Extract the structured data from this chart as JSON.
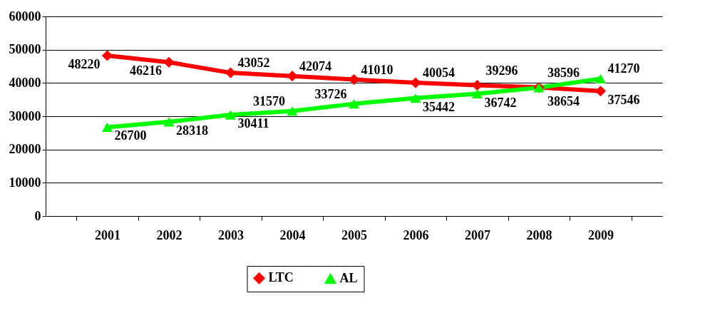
{
  "chart_data": {
    "type": "line",
    "categories": [
      "2001",
      "2002",
      "2003",
      "2004",
      "2005",
      "2006",
      "2007",
      "2008",
      "2009"
    ],
    "series": [
      {
        "name": "LTC",
        "color": "#ff0000",
        "marker": "diamond",
        "values": [
          48220,
          46216,
          43052,
          42074,
          41010,
          40054,
          39296,
          38654,
          37546
        ]
      },
      {
        "name": "AL",
        "color": "#00ff00",
        "marker": "triangle",
        "values": [
          26700,
          28318,
          30411,
          31570,
          33726,
          35442,
          36742,
          38596,
          41270
        ]
      }
    ],
    "ylim": [
      0,
      60000
    ],
    "yticks": [
      0,
      10000,
      20000,
      30000,
      40000,
      50000,
      60000
    ],
    "grid": "y",
    "legend": "bottom",
    "data_labels": true
  }
}
